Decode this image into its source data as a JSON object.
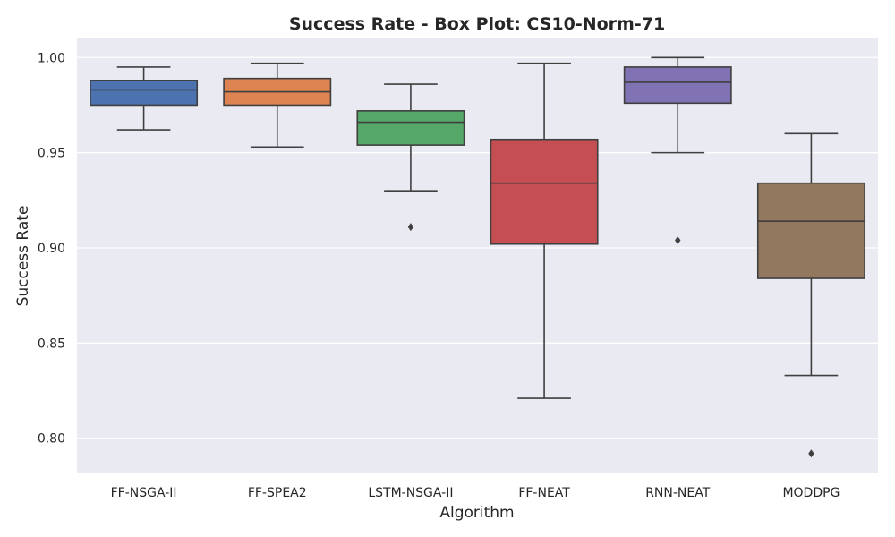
{
  "chart_data": {
    "type": "box",
    "title": "Success Rate - Box Plot: CS10-Norm-71",
    "xlabel": "Algorithm",
    "ylabel": "Success Rate",
    "ylim": [
      0.782,
      1.01
    ],
    "yticks": [
      "0.80",
      "0.85",
      "0.90",
      "0.95",
      "1.00"
    ],
    "grid": true,
    "legend": "none",
    "series": [
      {
        "category": "FF-NSGA-II",
        "color": "#4c72b0",
        "whisker_low": 0.962,
        "q1": 0.975,
        "median": 0.983,
        "q3": 0.988,
        "whisker_high": 0.995,
        "outliers": []
      },
      {
        "category": "FF-SPEA2",
        "color": "#dd8452",
        "whisker_low": 0.953,
        "q1": 0.975,
        "median": 0.982,
        "q3": 0.989,
        "whisker_high": 0.997,
        "outliers": []
      },
      {
        "category": "LSTM-NSGA-II",
        "color": "#55a868",
        "whisker_low": 0.93,
        "q1": 0.954,
        "median": 0.966,
        "q3": 0.972,
        "whisker_high": 0.986,
        "outliers": [
          0.911
        ]
      },
      {
        "category": "FF-NEAT",
        "color": "#c44e52",
        "whisker_low": 0.821,
        "q1": 0.902,
        "median": 0.934,
        "q3": 0.957,
        "whisker_high": 0.997,
        "outliers": []
      },
      {
        "category": "RNN-NEAT",
        "color": "#8172b3",
        "whisker_low": 0.95,
        "q1": 0.976,
        "median": 0.987,
        "q3": 0.995,
        "whisker_high": 1.0,
        "outliers": [
          0.904
        ]
      },
      {
        "category": "MODDPG",
        "color": "#937860",
        "whisker_low": 0.833,
        "q1": 0.884,
        "median": 0.914,
        "q3": 0.934,
        "whisker_high": 0.96,
        "outliers": [
          0.792
        ]
      }
    ]
  }
}
